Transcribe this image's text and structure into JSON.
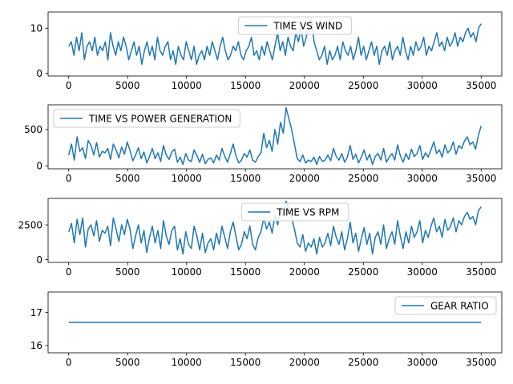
{
  "chart_data": [
    {
      "type": "line",
      "series": [
        {
          "name": "TIME VS WIND",
          "color": "#1f77b4",
          "values": [
            6,
            7,
            4,
            8,
            5,
            9,
            3,
            6,
            7,
            5,
            8,
            4,
            6,
            5,
            7,
            3,
            9,
            6,
            4,
            7,
            5,
            8,
            6,
            3,
            5,
            7,
            4,
            6,
            2,
            5,
            7,
            4,
            6,
            3,
            8,
            5,
            4,
            6,
            7,
            3,
            5,
            2,
            6,
            4,
            3,
            7,
            5,
            3,
            6,
            2,
            4,
            5,
            3,
            6,
            4,
            7,
            5,
            3,
            6,
            8,
            5,
            3,
            4,
            6,
            5,
            7,
            4,
            3,
            5,
            6,
            8,
            4,
            5,
            3,
            6,
            4,
            7,
            5,
            3,
            6,
            9,
            5,
            7,
            4,
            8,
            6,
            5,
            9,
            7,
            10,
            6,
            8,
            11,
            12,
            7,
            5,
            3,
            4,
            6,
            2,
            5,
            3,
            4,
            6,
            3,
            7,
            5,
            4,
            6,
            3,
            5,
            8,
            4,
            6,
            3,
            5,
            7,
            4,
            6,
            2,
            5,
            6,
            4,
            7,
            3,
            5,
            6,
            4,
            8,
            5,
            3,
            6,
            4,
            7,
            5,
            6,
            8,
            4,
            6,
            5,
            7,
            9,
            6,
            7,
            5,
            8,
            6,
            7,
            9,
            6,
            8,
            7,
            9,
            10,
            8,
            9,
            7,
            10,
            11
          ]
        }
      ],
      "x_range": [
        0,
        35000
      ],
      "xlim": [
        -1750,
        36750
      ],
      "ylim": [
        -0.6,
        13.6
      ],
      "xticks": [
        0,
        5000,
        10000,
        15000,
        20000,
        25000,
        30000,
        35000
      ],
      "yticks": [
        0,
        10
      ],
      "legend_loc": "top-center"
    },
    {
      "type": "line",
      "series": [
        {
          "name": "TIME VS POWER GENERATION",
          "color": "#1f77b4",
          "values": [
            150,
            300,
            80,
            400,
            200,
            250,
            100,
            350,
            280,
            150,
            320,
            120,
            200,
            180,
            240,
            90,
            300,
            220,
            110,
            260,
            160,
            330,
            210,
            70,
            150,
            250,
            100,
            190,
            40,
            130,
            240,
            100,
            180,
            60,
            280,
            150,
            90,
            190,
            230,
            50,
            120,
            20,
            170,
            80,
            60,
            220,
            140,
            50,
            160,
            30,
            90,
            110,
            40,
            150,
            80,
            240,
            130,
            50,
            170,
            300,
            140,
            40,
            80,
            170,
            120,
            220,
            80,
            50,
            130,
            180,
            450,
            250,
            350,
            200,
            500,
            300,
            600,
            450,
            800,
            650,
            500,
            300,
            100,
            60,
            150,
            40,
            80,
            60,
            120,
            20,
            130,
            60,
            80,
            150,
            70,
            240,
            130,
            80,
            170,
            50,
            120,
            280,
            90,
            160,
            40,
            120,
            220,
            80,
            160,
            20,
            130,
            170,
            80,
            240,
            50,
            120,
            170,
            80,
            290,
            140,
            50,
            170,
            90,
            230,
            130,
            170,
            280,
            90,
            180,
            120,
            220,
            330,
            170,
            220,
            120,
            290,
            180,
            220,
            330,
            160,
            280,
            240,
            340,
            400,
            290,
            330,
            230,
            420,
            550
          ]
        }
      ],
      "x_range": [
        0,
        35000
      ],
      "xlim": [
        -1750,
        36750
      ],
      "ylim": [
        -40,
        840
      ],
      "xticks": [
        0,
        5000,
        10000,
        15000,
        20000,
        25000,
        30000,
        35000
      ],
      "yticks": [
        0,
        500
      ],
      "legend_loc": "top-left"
    },
    {
      "type": "line",
      "series": [
        {
          "name": "TIME VS RPM",
          "color": "#1f77b4",
          "values": [
            2000,
            2600,
            1200,
            2900,
            1800,
            3000,
            900,
            2200,
            2500,
            1700,
            2800,
            1300,
            2100,
            1900,
            2400,
            1000,
            3000,
            2200,
            1300,
            2500,
            1800,
            2900,
            2200,
            800,
            1700,
            2500,
            1200,
            2100,
            500,
            1600,
            2400,
            1200,
            2100,
            800,
            2800,
            1700,
            1100,
            2100,
            2400,
            700,
            1500,
            400,
            2000,
            1100,
            800,
            2400,
            1700,
            700,
            1900,
            500,
            1200,
            1500,
            700,
            1900,
            1100,
            2400,
            1600,
            800,
            2000,
            2700,
            1700,
            700,
            1100,
            2000,
            1500,
            2400,
            1100,
            700,
            1600,
            2000,
            3000,
            2200,
            2700,
            1900,
            3200,
            2500,
            3600,
            3100,
            4200,
            3700,
            3000,
            2200,
            1200,
            900,
            1800,
            600,
            1200,
            900,
            1500,
            400,
            1600,
            900,
            1200,
            1900,
            1000,
            2400,
            1600,
            1100,
            2000,
            700,
            1500,
            2700,
            1200,
            1900,
            600,
            1500,
            2300,
            1100,
            1900,
            400,
            1600,
            2000,
            1100,
            2500,
            800,
            1500,
            2000,
            1100,
            2800,
            1700,
            800,
            2000,
            1200,
            2400,
            1600,
            2000,
            2800,
            1200,
            2100,
            1600,
            2400,
            3000,
            2000,
            2400,
            1600,
            2900,
            2100,
            2400,
            3000,
            2000,
            2800,
            2500,
            3100,
            3400,
            2900,
            3100,
            2500,
            3500,
            3800
          ]
        }
      ],
      "x_range": [
        0,
        35000
      ],
      "xlim": [
        -1750,
        36750
      ],
      "ylim": [
        -200,
        4400
      ],
      "xticks": [
        0,
        5000,
        10000,
        15000,
        20000,
        25000,
        30000,
        35000
      ],
      "yticks": [
        0,
        2500
      ],
      "legend_loc": "top-center"
    },
    {
      "type": "line",
      "series": [
        {
          "name": "GEAR RATIO",
          "color": "#1f77b4",
          "values": [
            16.7,
            16.7
          ]
        }
      ],
      "x_range": [
        0,
        35000
      ],
      "xlim": [
        -1750,
        36750
      ],
      "ylim": [
        15.78,
        17.62
      ],
      "xticks": [
        0,
        5000,
        10000,
        15000,
        20000,
        25000,
        30000,
        35000
      ],
      "yticks": [
        16,
        17
      ],
      "legend_loc": "top-right"
    }
  ]
}
